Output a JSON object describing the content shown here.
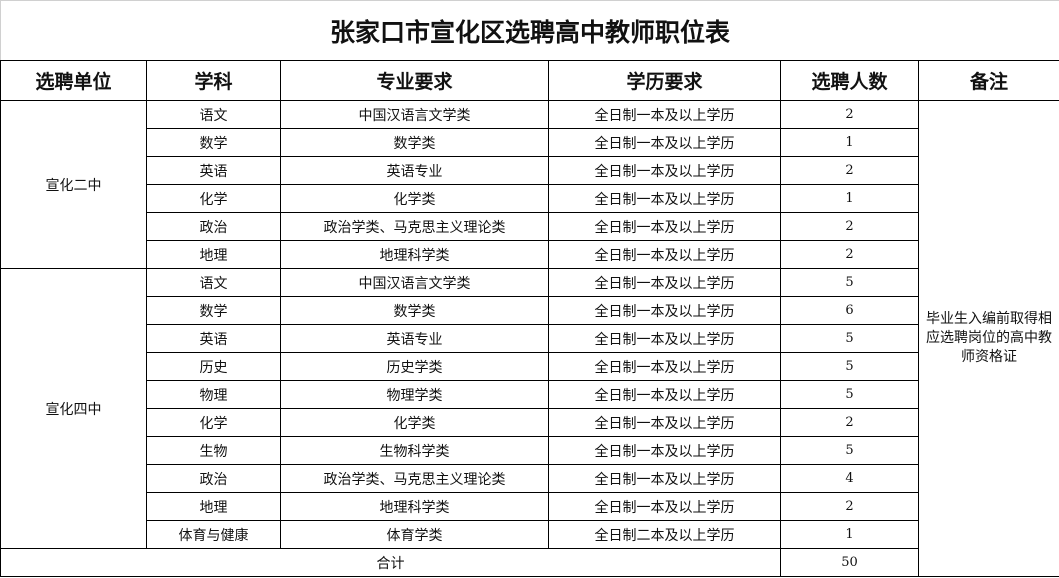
{
  "title": "张家口市宣化区选聘高中教师职位表",
  "headers": [
    "选聘单位",
    "学科",
    "专业要求",
    "学历要求",
    "选聘人数",
    "备注"
  ],
  "units": [
    {
      "name": "宣化二中",
      "rows": [
        [
          "语文",
          "中国汉语言文学类",
          "全日制一本及以上学历",
          "2"
        ],
        [
          "数学",
          "数学类",
          "全日制一本及以上学历",
          "1"
        ],
        [
          "英语",
          "英语专业",
          "全日制一本及以上学历",
          "2"
        ],
        [
          "化学",
          "化学类",
          "全日制一本及以上学历",
          "1"
        ],
        [
          "政治",
          "政治学类、马克思主义理论类",
          "全日制一本及以上学历",
          "2"
        ],
        [
          "地理",
          "地理科学类",
          "全日制一本及以上学历",
          "2"
        ]
      ]
    },
    {
      "name": "宣化四中",
      "rows": [
        [
          "语文",
          "中国汉语言文学类",
          "全日制一本及以上学历",
          "5"
        ],
        [
          "数学",
          "数学类",
          "全日制一本及以上学历",
          "6"
        ],
        [
          "英语",
          "英语专业",
          "全日制一本及以上学历",
          "5"
        ],
        [
          "历史",
          "历史学类",
          "全日制一本及以上学历",
          "5"
        ],
        [
          "物理",
          "物理学类",
          "全日制一本及以上学历",
          "5"
        ],
        [
          "化学",
          "化学类",
          "全日制一本及以上学历",
          "2"
        ],
        [
          "生物",
          "生物科学类",
          "全日制一本及以上学历",
          "5"
        ],
        [
          "政治",
          "政治学类、马克思主义理论类",
          "全日制一本及以上学历",
          "4"
        ],
        [
          "地理",
          "地理科学类",
          "全日制一本及以上学历",
          "2"
        ],
        [
          "体育与健康",
          "体育学类",
          "全日制二本及以上学历",
          "1"
        ]
      ]
    }
  ],
  "note": "毕业生入编前取得相应选聘岗位的高中教师资格证",
  "total_label": "合计",
  "total": "50"
}
